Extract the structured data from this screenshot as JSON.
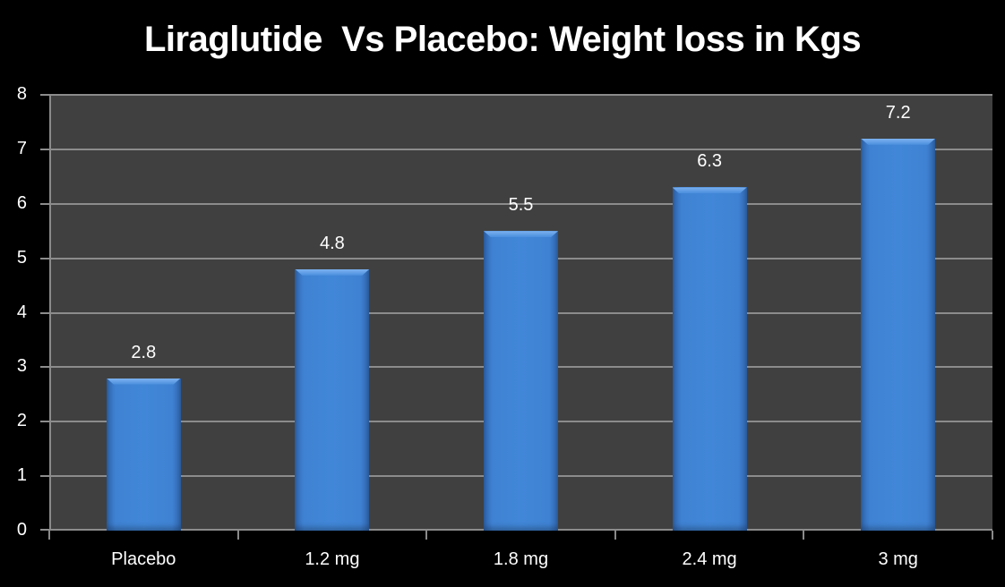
{
  "chart_data": {
    "type": "bar",
    "title": "Liraglutide  Vs Placebo: Weight loss in Kgs",
    "categories": [
      "Placebo",
      "1.2 mg",
      "1.8 mg",
      "2.4 mg",
      "3 mg"
    ],
    "values": [
      2.8,
      4.8,
      5.5,
      6.3,
      7.2
    ],
    "data_labels": [
      "2.8",
      "4.8",
      "5.5",
      "6.3",
      "7.2"
    ],
    "xlabel": "",
    "ylabel": "",
    "ylim": [
      0,
      8
    ],
    "yticks": [
      "0",
      "1",
      "2",
      "3",
      "4",
      "5",
      "6",
      "7",
      "8"
    ],
    "grid": true,
    "legend": null,
    "colors": {
      "bar": "#4187d8",
      "plot_bg": "#404040",
      "page_bg": "#000000",
      "grid": "#8c8c8c"
    }
  }
}
